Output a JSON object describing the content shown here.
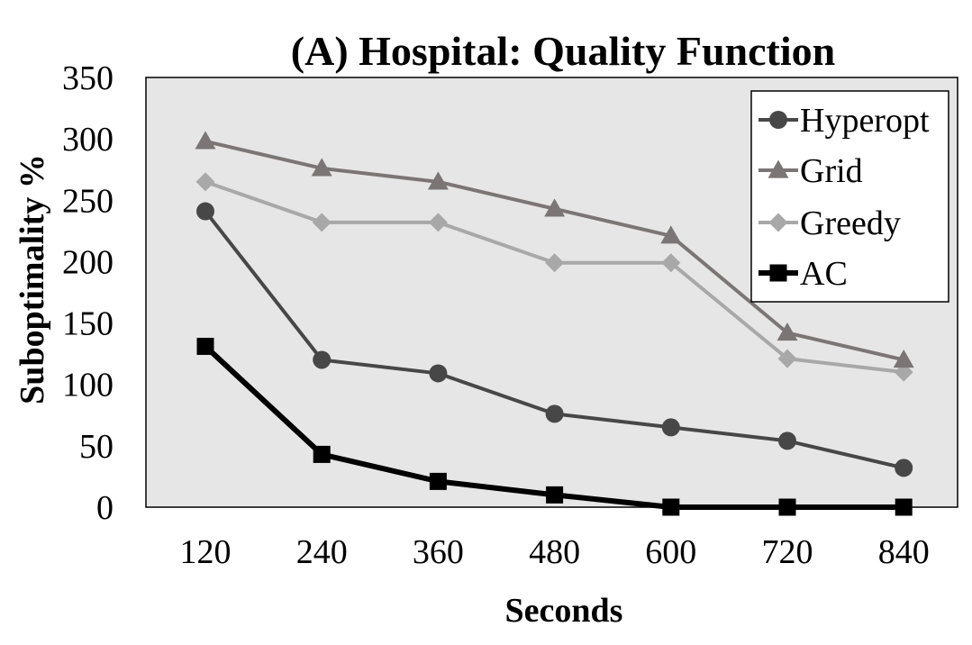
{
  "chart_data": {
    "type": "line",
    "title": "(A) Hospital: Quality Function",
    "xlabel": "Seconds",
    "ylabel": "Suboptimality %",
    "categories": [
      "120",
      "240",
      "360",
      "480",
      "600",
      "720",
      "840"
    ],
    "ylim": [
      0,
      350
    ],
    "yticks": [
      0,
      50,
      100,
      150,
      200,
      250,
      300,
      350
    ],
    "grid": false,
    "plot_background": "#e6e6e6",
    "legend_position": "top-right",
    "series": [
      {
        "name": "Hyperopt",
        "marker": "circle",
        "color": "#474747",
        "values": [
          241,
          120,
          109,
          76,
          65,
          54,
          32
        ]
      },
      {
        "name": "Grid",
        "marker": "triangle",
        "color": "#7b7575",
        "values": [
          298,
          276,
          265,
          243,
          221,
          142,
          120
        ]
      },
      {
        "name": "Greedy",
        "marker": "diamond",
        "color": "#a8a8a8",
        "values": [
          265,
          232,
          232,
          199,
          199,
          121,
          110
        ]
      },
      {
        "name": "AC",
        "marker": "square",
        "color": "#000000",
        "values": [
          131,
          43,
          21,
          10,
          0,
          0,
          0
        ]
      }
    ]
  }
}
